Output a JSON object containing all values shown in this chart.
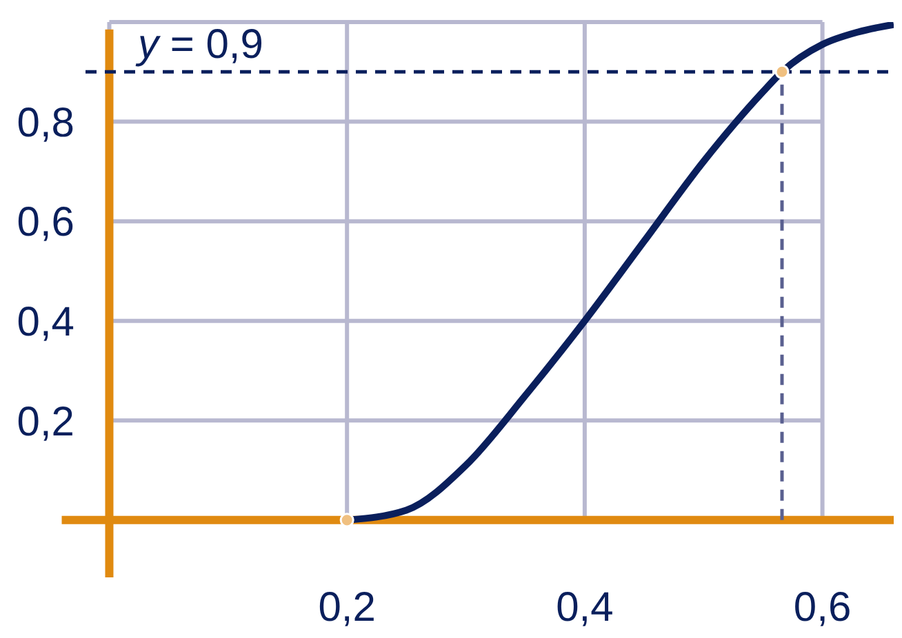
{
  "chart_data": {
    "type": "line",
    "x": [
      0.2,
      0.25,
      0.3,
      0.35,
      0.4,
      0.45,
      0.5,
      0.55,
      0.566,
      0.6,
      0.63,
      0.66
    ],
    "series": [
      {
        "color": "#0a1f5c",
        "marker": "none",
        "values": [
          0,
          0.02,
          0.11,
          0.25,
          0.4,
          0.56,
          0.72,
          0.86,
          0.9,
          0.955,
          0.98,
          0.995
        ]
      },
      {
        "type": "scatter",
        "marker": "circle",
        "color": "#f0c080",
        "x": [
          0.2,
          0.566
        ],
        "values": [
          0,
          0.9
        ]
      }
    ],
    "xlim": [
      -0.02,
      0.66
    ],
    "ylim": [
      -0.115,
      1.0
    ],
    "xticks": [
      {
        "value": 0.2,
        "label": "0,2"
      },
      {
        "value": 0.4,
        "label": "0,4"
      },
      {
        "value": 0.6,
        "label": "0,6"
      }
    ],
    "yticks": [
      {
        "value": 0.2,
        "label": "0,2"
      },
      {
        "value": 0.4,
        "label": "0,4"
      },
      {
        "value": 0.6,
        "label": "0,6"
      },
      {
        "value": 0.8,
        "label": "0,8"
      },
      {
        "value": 1,
        "label": null
      }
    ],
    "grid": true,
    "line_style": "solid",
    "ref_lines": [
      {
        "axis": "y",
        "value": 0.9,
        "label": "y = 0,9",
        "color": "#0a1f5c",
        "line_style": "dashed"
      },
      {
        "axis": "x",
        "value": 0.566,
        "color": "#5a6090",
        "line_style": "dashed"
      }
    ]
  }
}
